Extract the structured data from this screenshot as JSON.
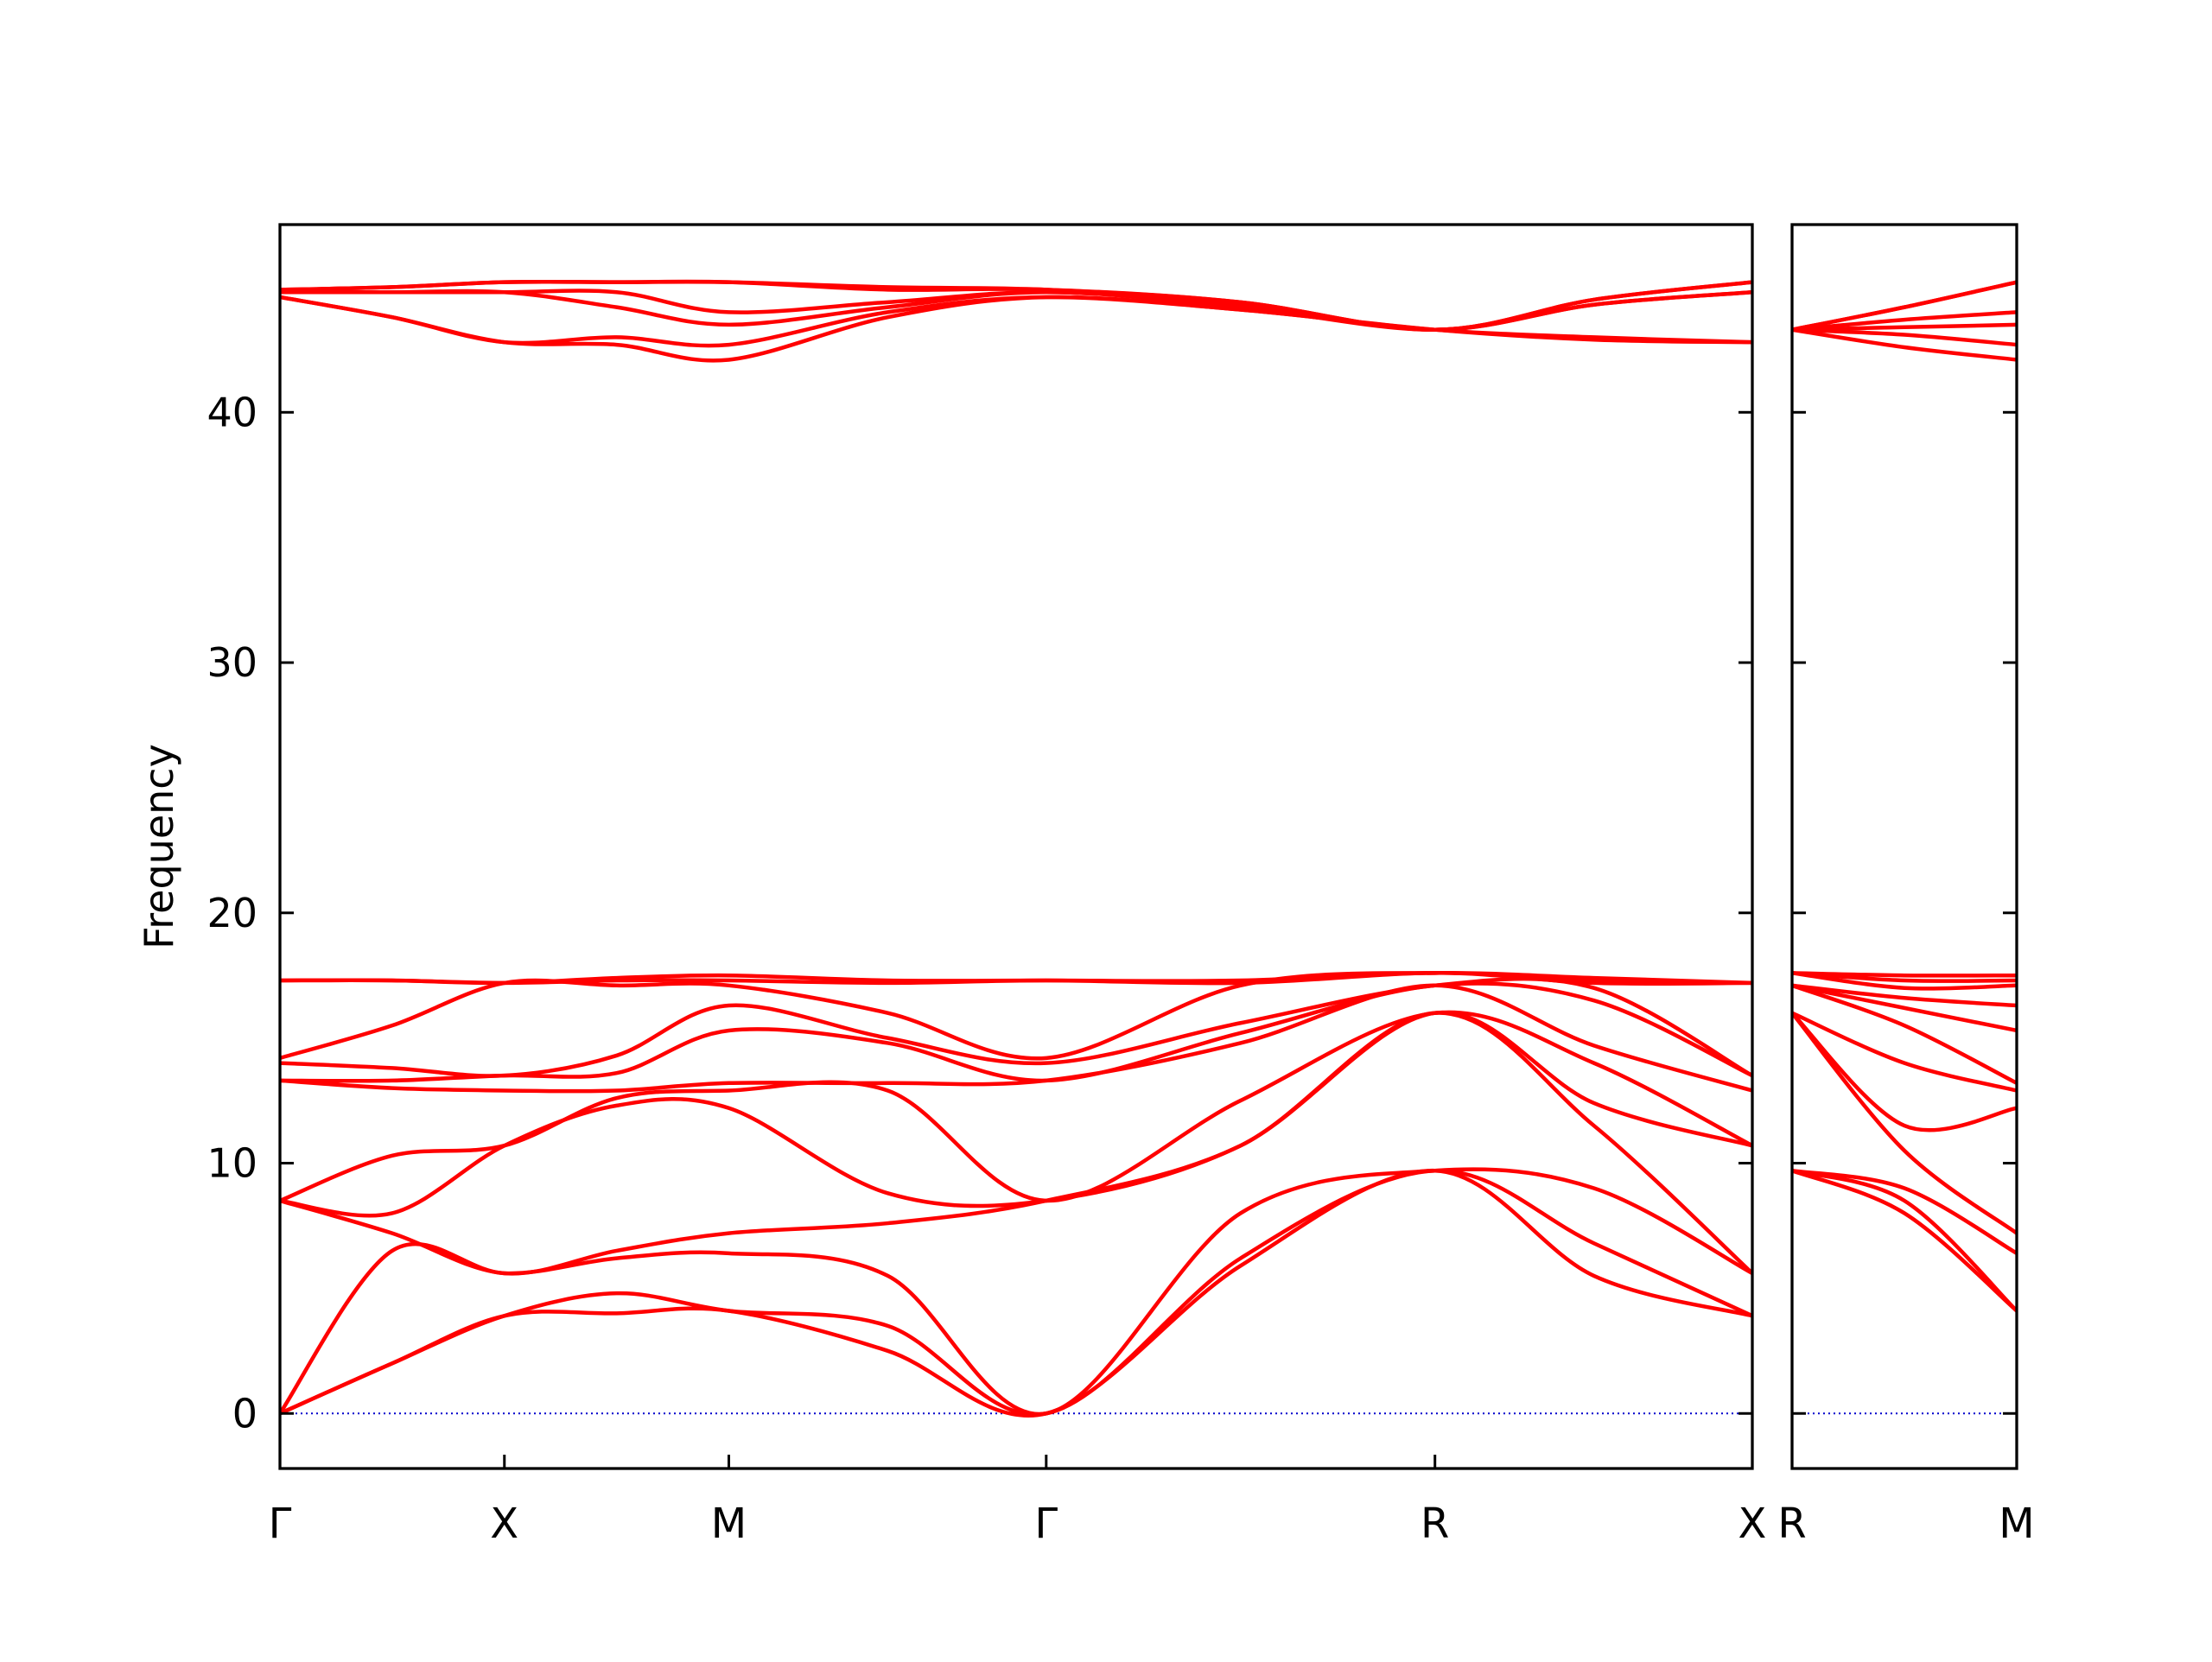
{
  "chart_data": [
    {
      "type": "line",
      "ylabel": "Frequency",
      "color": "#ff0000",
      "x": [
        0,
        0.25,
        0.5,
        0.75,
        1.0,
        1.354,
        1.707,
        2.14,
        2.573,
        2.927,
        3.28
      ],
      "xlim": [
        0,
        3.28
      ],
      "xticks": [
        {
          "value": 0,
          "label": "Γ"
        },
        {
          "value": 0.5,
          "label": "X"
        },
        {
          "value": 1.0,
          "label": "M"
        },
        {
          "value": 1.707,
          "label": "Γ"
        },
        {
          "value": 2.573,
          "label": "R"
        },
        {
          "value": 3.28,
          "label": "X"
        }
      ],
      "ylim": [
        -2.2,
        47.5
      ],
      "yticks": [
        0,
        10,
        20,
        30,
        40
      ],
      "show_ytick_labels": true,
      "hline": 0,
      "hline_color": "#0000cc",
      "bands": [
        [
          0,
          2.0,
          3.9,
          4.0,
          4.1,
          2.5,
          0,
          5.9,
          9.7,
          5.5,
          3.9
        ],
        [
          0,
          2.0,
          3.9,
          4.8,
          4.1,
          3.5,
          0,
          6.2,
          9.7,
          6.8,
          3.9
        ],
        [
          0,
          6.5,
          5.6,
          6.2,
          6.4,
          5.5,
          0,
          8.0,
          9.7,
          9.0,
          5.6
        ],
        [
          8.5,
          7.2,
          5.6,
          6.5,
          7.2,
          7.6,
          8.5,
          10.7,
          16.0,
          11.5,
          5.6
        ],
        [
          8.5,
          8.0,
          10.7,
          12.3,
          12.2,
          8.8,
          8.5,
          10.7,
          16.0,
          12.4,
          10.7
        ],
        [
          8.5,
          10.3,
          10.7,
          12.6,
          12.9,
          12.9,
          8.5,
          12.5,
          16.0,
          14.0,
          10.7
        ],
        [
          13.3,
          13.0,
          12.9,
          12.9,
          13.2,
          13.2,
          13.3,
          14.8,
          17.1,
          14.7,
          12.9
        ],
        [
          13.3,
          13.3,
          13.5,
          13.6,
          15.3,
          14.8,
          13.3,
          15.2,
          17.1,
          16.5,
          13.5
        ],
        [
          14.0,
          13.8,
          13.5,
          14.3,
          16.3,
          15.0,
          14.0,
          15.6,
          17.1,
          17.0,
          13.5
        ],
        [
          14.2,
          15.5,
          17.2,
          17.1,
          17.1,
          16.0,
          14.2,
          17.1,
          17.6,
          17.2,
          17.2
        ],
        [
          17.3,
          17.3,
          17.2,
          17.3,
          17.3,
          17.2,
          17.3,
          17.2,
          17.6,
          17.3,
          17.2
        ],
        [
          17.3,
          17.3,
          17.2,
          17.4,
          17.5,
          17.3,
          17.3,
          17.3,
          17.6,
          17.4,
          17.2
        ],
        [
          44.6,
          43.8,
          42.8,
          42.7,
          42.1,
          43.8,
          44.6,
          44.1,
          43.3,
          42.9,
          42.8
        ],
        [
          44.6,
          43.8,
          42.8,
          43.0,
          42.7,
          44.0,
          44.6,
          44.1,
          43.3,
          43.0,
          42.8
        ],
        [
          44.8,
          44.8,
          44.8,
          44.2,
          43.5,
          44.2,
          44.8,
          44.2,
          43.3,
          44.3,
          44.8
        ],
        [
          44.8,
          44.8,
          44.8,
          44.8,
          44.0,
          44.4,
          44.8,
          44.3,
          43.3,
          44.3,
          44.8
        ],
        [
          44.9,
          45.0,
          45.2,
          45.2,
          45.2,
          44.9,
          44.9,
          44.4,
          43.3,
          44.5,
          45.2
        ],
        [
          44.9,
          45.0,
          45.2,
          45.2,
          45.2,
          45.0,
          44.9,
          44.4,
          43.3,
          44.5,
          45.2
        ]
      ]
    },
    {
      "type": "line",
      "color": "#ff0000",
      "x": [
        0,
        0.25,
        0.5
      ],
      "xlim": [
        0,
        0.5
      ],
      "xticks": [
        {
          "value": 0,
          "label": "R"
        },
        {
          "value": 0.5,
          "label": "M"
        }
      ],
      "ylim": [
        -2.2,
        47.5
      ],
      "yticks": [
        0,
        10,
        20,
        30,
        40
      ],
      "show_ytick_labels": false,
      "hline": 0,
      "hline_color": "#0000cc",
      "bands": [
        [
          9.7,
          8.0,
          4.1
        ],
        [
          9.7,
          8.5,
          4.1
        ],
        [
          9.7,
          9.0,
          6.4
        ],
        [
          16.0,
          10.5,
          7.2
        ],
        [
          16.0,
          11.5,
          12.2
        ],
        [
          16.0,
          14.0,
          12.9
        ],
        [
          17.1,
          15.5,
          13.2
        ],
        [
          17.1,
          16.2,
          15.3
        ],
        [
          17.1,
          16.6,
          16.3
        ],
        [
          17.6,
          17.0,
          17.1
        ],
        [
          17.6,
          17.3,
          17.3
        ],
        [
          17.6,
          17.5,
          17.5
        ],
        [
          43.3,
          42.6,
          42.1
        ],
        [
          43.3,
          43.1,
          42.7
        ],
        [
          43.3,
          43.4,
          43.5
        ],
        [
          43.3,
          43.7,
          44.0
        ],
        [
          43.3,
          44.2,
          45.2
        ],
        [
          43.3,
          44.2,
          45.2
        ]
      ]
    }
  ]
}
